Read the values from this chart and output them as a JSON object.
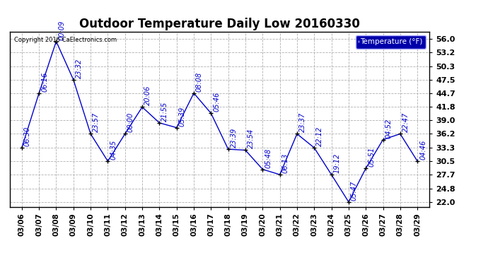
{
  "title": "Outdoor Temperature Daily Low 20160330",
  "copyright": "Copyright 2016 CaElectronics.com",
  "legend_label": "Temperature (°F)",
  "dates": [
    "03/06",
    "03/07",
    "03/08",
    "03/09",
    "03/10",
    "03/11",
    "03/12",
    "03/13",
    "03/14",
    "03/15",
    "03/16",
    "03/17",
    "03/18",
    "03/19",
    "03/20",
    "03/21",
    "03/22",
    "03/23",
    "03/24",
    "03/25",
    "03/26",
    "03/27",
    "03/28",
    "03/29"
  ],
  "temps": [
    33.3,
    44.7,
    55.5,
    47.5,
    36.2,
    30.5,
    36.2,
    41.8,
    38.5,
    37.5,
    44.7,
    40.5,
    33.0,
    32.8,
    28.8,
    27.7,
    36.2,
    33.3,
    27.7,
    22.0,
    29.0,
    35.0,
    36.2,
    30.5
  ],
  "time_labels": [
    "06:30",
    "06:16",
    "00:09",
    "23:32",
    "23:57",
    "04:35",
    "00:00",
    "20:06",
    "21:55",
    "05:39",
    "08:08",
    "05:46",
    "23:39",
    "23:54",
    "05:48",
    "06:13",
    "23:37",
    "22:12",
    "19:12",
    "05:47",
    "05:51",
    "04:52",
    "22:47",
    "04:46"
  ],
  "yticks": [
    22.0,
    24.8,
    27.7,
    30.5,
    33.3,
    36.2,
    39.0,
    41.8,
    44.7,
    47.5,
    50.3,
    53.2,
    56.0
  ],
  "ylim": [
    21.0,
    57.5
  ],
  "line_color": "#0000cc",
  "marker_color": "#000000",
  "bg_color": "#ffffff",
  "plot_bg_color": "#ffffff",
  "grid_color": "#b0b0b0",
  "title_fontsize": 12,
  "legend_bg_color": "#0000aa",
  "legend_text_color": "#ffffff",
  "annotation_color": "#0000cc",
  "annotation_fontsize": 7
}
